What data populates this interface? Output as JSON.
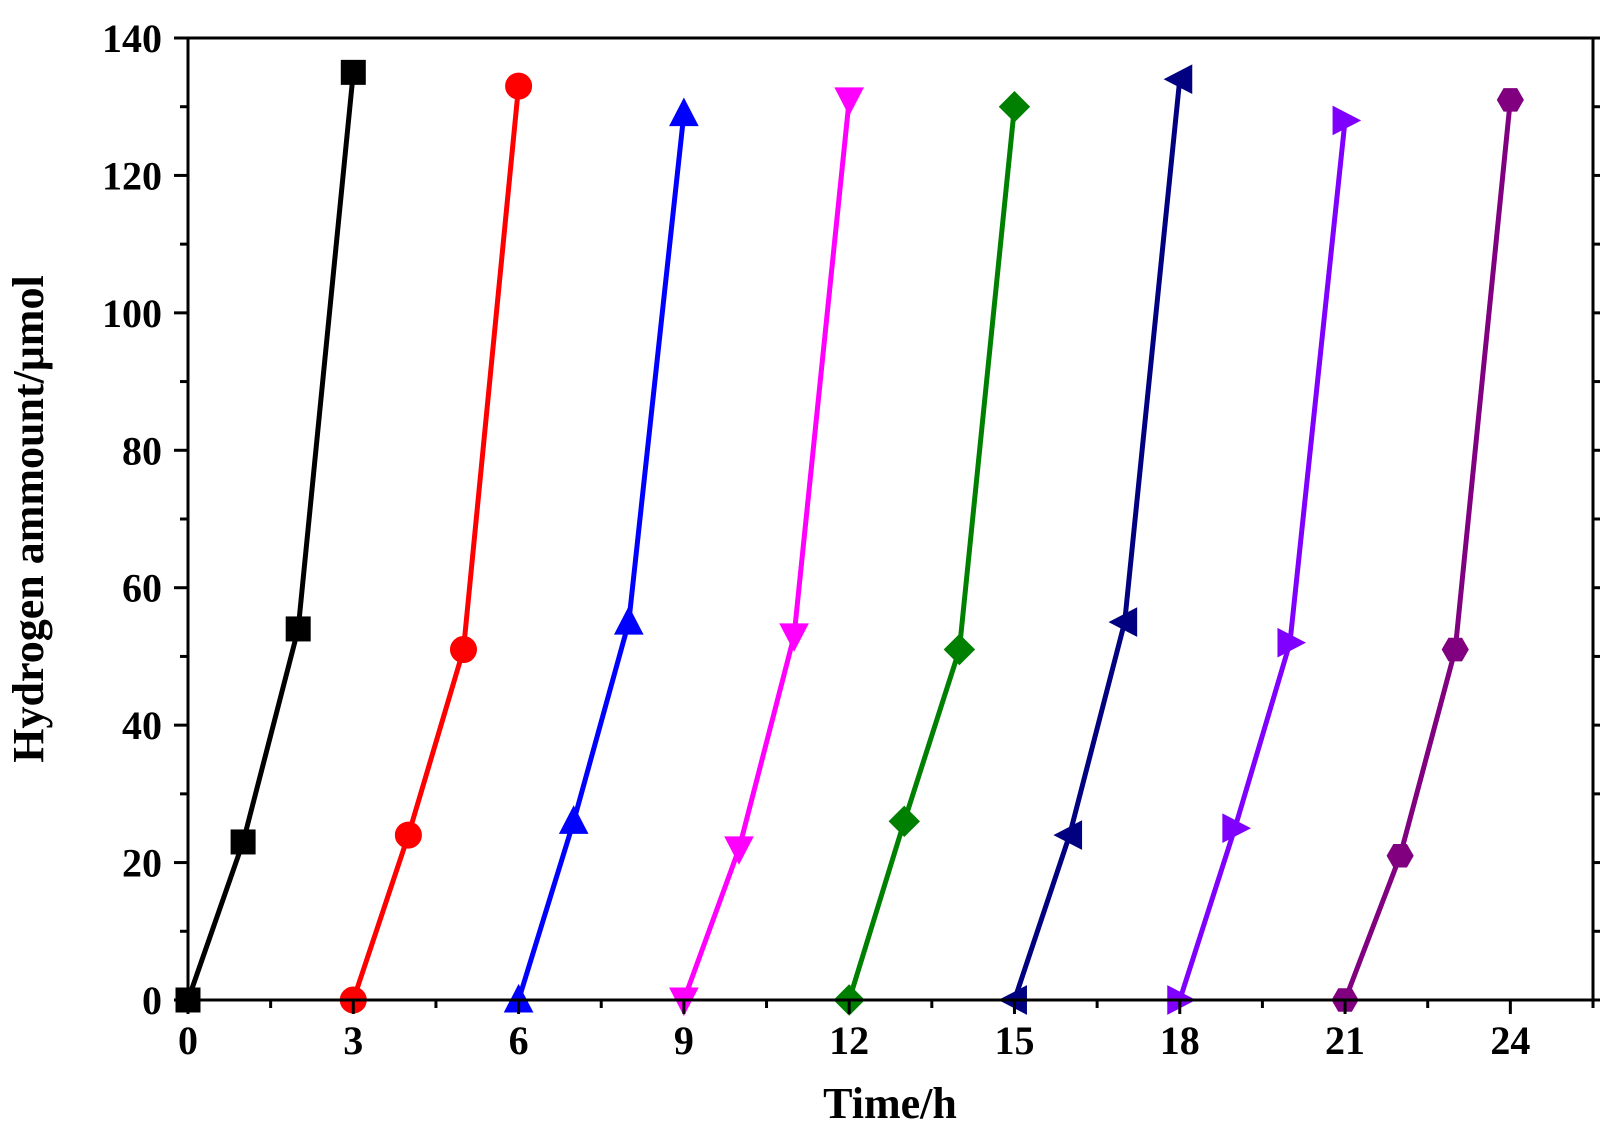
{
  "chart_data": {
    "type": "line",
    "title": "",
    "xlabel": "Time/h",
    "ylabel": "Hydrogen ammount/μmol",
    "xlim": [
      0,
      25.5
    ],
    "ylim": [
      0,
      140
    ],
    "xticks": [
      0,
      3,
      6,
      9,
      12,
      15,
      18,
      21,
      24
    ],
    "yticks": [
      0,
      20,
      40,
      60,
      80,
      100,
      120,
      140
    ],
    "x_minor_step": 1.5,
    "y_minor_step": 10,
    "grid": false,
    "legend": "none",
    "series": [
      {
        "color": "#000000",
        "marker": "square",
        "x": [
          0,
          1,
          2,
          3
        ],
        "y": [
          0,
          23,
          54,
          135
        ]
      },
      {
        "color": "#ff0000",
        "marker": "circle",
        "x": [
          3,
          4,
          5,
          6
        ],
        "y": [
          0,
          24,
          51,
          133
        ]
      },
      {
        "color": "#0000ff",
        "marker": "triangle-up",
        "x": [
          6,
          7,
          8,
          9
        ],
        "y": [
          0,
          26,
          55,
          129
        ]
      },
      {
        "color": "#ff00ff",
        "marker": "triangle-down",
        "x": [
          9,
          10,
          11,
          12
        ],
        "y": [
          0,
          22,
          53,
          131
        ]
      },
      {
        "color": "#008000",
        "marker": "diamond",
        "x": [
          12,
          13,
          14,
          15
        ],
        "y": [
          0,
          26,
          51,
          130
        ]
      },
      {
        "color": "#000080",
        "marker": "triangle-left",
        "x": [
          15,
          16,
          17,
          18
        ],
        "y": [
          0,
          24,
          55,
          134
        ]
      },
      {
        "color": "#8000ff",
        "marker": "triangle-right",
        "x": [
          18,
          19,
          20,
          21
        ],
        "y": [
          0,
          25,
          52,
          128
        ]
      },
      {
        "color": "#800080",
        "marker": "hexagon",
        "x": [
          21,
          22,
          23,
          24
        ],
        "y": [
          0,
          21,
          51,
          131
        ]
      }
    ]
  }
}
